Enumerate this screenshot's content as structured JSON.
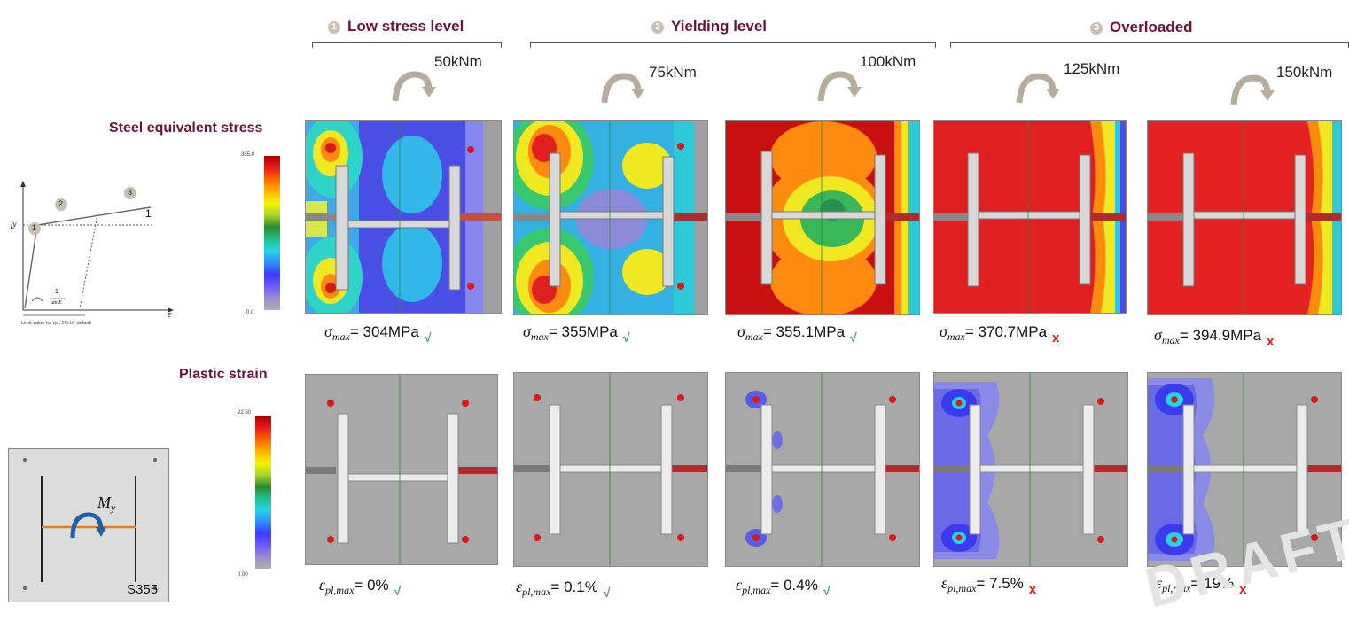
{
  "groups": [
    {
      "number": "1",
      "title": "Low stress level"
    },
    {
      "number": "2",
      "title": "Yielding level"
    },
    {
      "number": "3",
      "title": "Overloaded"
    }
  ],
  "moments": [
    "50kNm",
    "75kNm",
    "100kNm",
    "125kNm",
    "150kNm"
  ],
  "rows": {
    "stress_title": "Steel equivalent stress",
    "strain_title": "Plastic strain"
  },
  "stress_scale": {
    "max": "355.0",
    "min": "0.0"
  },
  "strain_scale": {
    "max": "22.50",
    "min": "0.00"
  },
  "stress_results": [
    {
      "symbol": "σ",
      "subscript": "max",
      "value": "= 304MPa",
      "status": "ok",
      "mark": "√"
    },
    {
      "symbol": "σ",
      "subscript": "max",
      "value": "= 355MPa",
      "status": "ok",
      "mark": "√"
    },
    {
      "symbol": "σ",
      "subscript": "max",
      "value": "= 355.1MPa",
      "status": "ok",
      "mark": "√"
    },
    {
      "symbol": "σ",
      "subscript": "max",
      "value": "= 370.7MPa",
      "status": "fail",
      "mark": "x"
    },
    {
      "symbol": "σ",
      "subscript": "max",
      "value": "= 394.9MPa",
      "status": "fail",
      "mark": "x"
    }
  ],
  "strain_results": [
    {
      "symbol": "ε",
      "subscript": "pl,max",
      "value": "= 0%",
      "status": "ok",
      "mark": "√"
    },
    {
      "symbol": "ε",
      "subscript": "pl,max",
      "value": "= 0.1%",
      "status": "ok",
      "mark": "√"
    },
    {
      "symbol": "ε",
      "subscript": "pl,max",
      "value": "= 0.4%",
      "status": "ok",
      "mark": "√"
    },
    {
      "symbol": "ε",
      "subscript": "pl,max",
      "value": "= 7.5%",
      "status": "fail",
      "mark": "x"
    },
    {
      "symbol": "ε",
      "subscript": "pl,max",
      "value": "= 19%",
      "status": "fail",
      "mark": "x"
    }
  ],
  "material_diagram": {
    "y_axis": "fy",
    "x_axis": "ε",
    "points": [
      "1",
      "2",
      "3"
    ],
    "slope_label": "1",
    "fraction_top": "1",
    "fraction_bottom": "tan E",
    "note": "Limit value for εpl, 5% by default"
  },
  "joint_sketch": {
    "moment_label": "M",
    "moment_sub": "y",
    "material": "S355"
  },
  "watermark": "DRAFT",
  "colors": {
    "title": "#6b1236",
    "ok": "#3da54a",
    "fail": "#d21f1f",
    "panel_bg": "#a8a8a8"
  }
}
